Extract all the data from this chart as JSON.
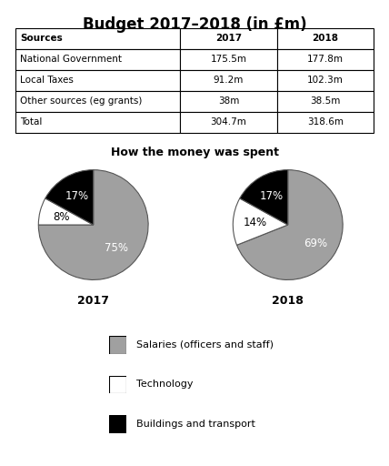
{
  "title": "Budget 2017–2018 (in £m)",
  "table_headers": [
    "Sources",
    "2017",
    "2018"
  ],
  "table_rows": [
    [
      "National Government",
      "175.5m",
      "177.8m"
    ],
    [
      "Local Taxes",
      "91.2m",
      "102.3m"
    ],
    [
      "Other sources (eg grants)",
      "38m",
      "38.5m"
    ],
    [
      "Total",
      "304.7m",
      "318.6m"
    ]
  ],
  "pie_title": "How the money was spent",
  "pie2017": {
    "values": [
      75,
      8,
      17
    ],
    "colors": [
      "#a0a0a0",
      "#ffffff",
      "#000000"
    ],
    "labels": [
      "75%",
      "8%",
      "17%"
    ],
    "label_colors": [
      "white",
      "black",
      "white"
    ],
    "label": "2017"
  },
  "pie2018": {
    "values": [
      69,
      14,
      17
    ],
    "colors": [
      "#a0a0a0",
      "#ffffff",
      "#000000"
    ],
    "labels": [
      "69%",
      "14%",
      "17%"
    ],
    "label_colors": [
      "white",
      "black",
      "white"
    ],
    "label": "2018"
  },
  "legend_items": [
    {
      "label": "Salaries (officers and staff)",
      "color": "#a0a0a0"
    },
    {
      "label": "Technology",
      "color": "#ffffff"
    },
    {
      "label": "Buildings and transport",
      "color": "#000000"
    }
  ],
  "bg_color": "#ffffff"
}
